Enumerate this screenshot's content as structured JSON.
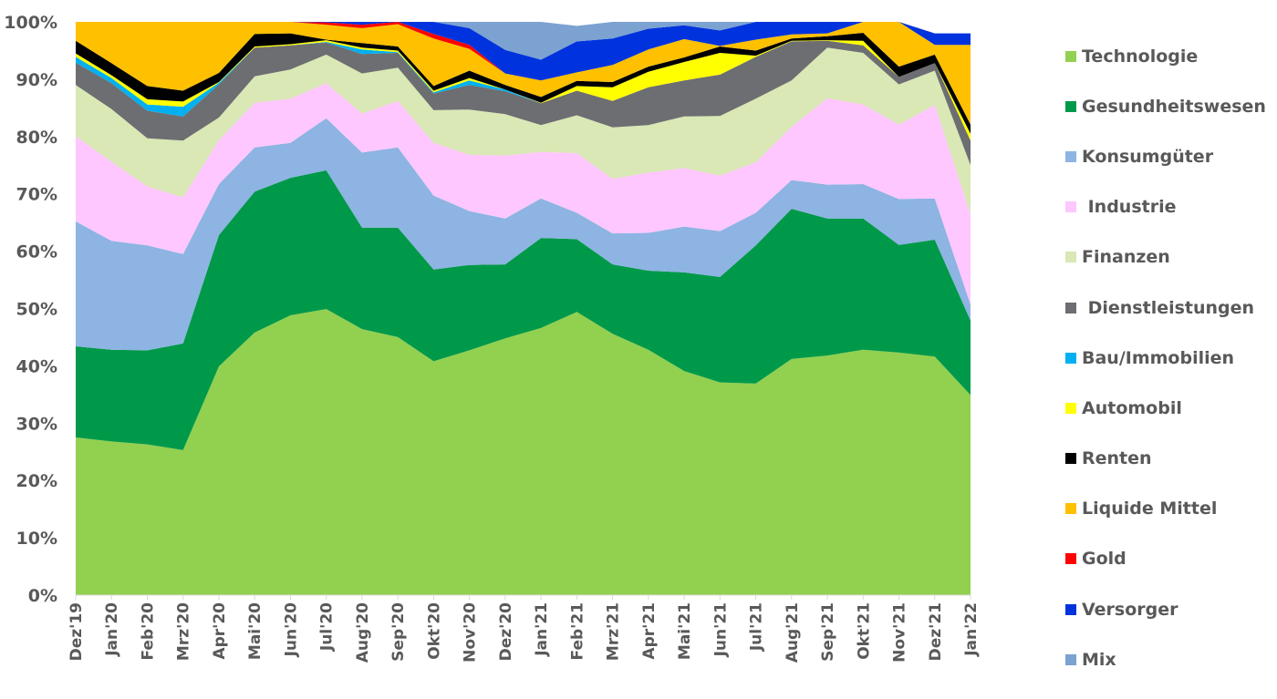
{
  "chart_data": {
    "type": "area",
    "stacked": true,
    "title": "",
    "xlabel": "",
    "ylabel": "",
    "ylim": [
      0,
      100
    ],
    "y_ticks": [
      "0%",
      "10%",
      "20%",
      "30%",
      "40%",
      "50%",
      "60%",
      "70%",
      "80%",
      "90%",
      "100%"
    ],
    "categories": [
      "Dez'19",
      "Jan'20",
      "Feb'20",
      "Mrz'20",
      "Apr'20",
      "Mai'20",
      "Jun'20",
      "Jul'20",
      "Aug'20",
      "Sep'20",
      "Okt'20",
      "Nov'20",
      "Dez'20",
      "Jan'21",
      "Feb'21",
      "Mrz'21",
      "Apr'21",
      "Mai'21",
      "Jun'21",
      "Jul'21",
      "Aug'21",
      "Sep'21",
      "Okt'21",
      "Nov'21",
      "Dez'21",
      "Jan'22"
    ],
    "series": [
      {
        "name": "Technologie",
        "color": "#92d050",
        "values": [
          27.5,
          26.8,
          26.3,
          25.3,
          39.9,
          45.8,
          48.8,
          49.9,
          46.4,
          45.0,
          40.8,
          42.7,
          44.8,
          46.6,
          49.4,
          45.6,
          42.8,
          39.1,
          37.1,
          36.9,
          41.2,
          41.8,
          42.8,
          42.3,
          41.6,
          34.9
        ]
      },
      {
        "name": "Gesundheitswesen",
        "color": "#00994a",
        "values": [
          15.9,
          16.0,
          16.4,
          18.6,
          22.9,
          24.6,
          24.0,
          24.2,
          17.7,
          19.1,
          16.0,
          14.9,
          12.9,
          15.7,
          12.7,
          12.1,
          13.8,
          17.2,
          18.4,
          24.1,
          26.2,
          23.9,
          22.9,
          18.8,
          20.4,
          13.0
        ]
      },
      {
        "name": "Konsumgüter",
        "color": "#8db4e2",
        "values": [
          21.8,
          19.0,
          18.3,
          15.6,
          8.9,
          7.7,
          6.1,
          9.1,
          13.1,
          14.0,
          12.9,
          9.4,
          8.0,
          6.9,
          4.6,
          5.4,
          6.6,
          8.0,
          8.0,
          5.7,
          5.0,
          5.9,
          6.0,
          8.0,
          7.2,
          2.8
        ]
      },
      {
        "name": "Industrie",
        "color": "#ffc7ff",
        "values": [
          14.9,
          13.8,
          10.3,
          9.9,
          7.7,
          7.8,
          7.7,
          6.1,
          6.8,
          8.1,
          9.2,
          9.8,
          11.0,
          8.1,
          10.4,
          9.5,
          10.5,
          10.2,
          9.7,
          8.8,
          9.3,
          15.1,
          13.9,
          13.0,
          16.3,
          15.7
        ]
      },
      {
        "name": "Finanzen",
        "color": "#d9e8b5",
        "values": [
          8.9,
          9.2,
          8.4,
          9.9,
          3.9,
          4.6,
          5.1,
          5.0,
          7.0,
          5.8,
          5.7,
          7.9,
          7.2,
          4.7,
          6.6,
          9.0,
          8.3,
          9.0,
          10.4,
          11.1,
          8.1,
          8.8,
          9.0,
          7.0,
          6.0,
          8.6
        ]
      },
      {
        "name": "Dienstleistungen",
        "color": "#6d6e71",
        "values": [
          3.9,
          4.5,
          4.8,
          4.2,
          5.8,
          5.0,
          4.2,
          2.1,
          3.4,
          2.6,
          2.9,
          4.3,
          4.0,
          3.8,
          4.3,
          4.6,
          6.6,
          6.3,
          7.2,
          7.3,
          6.8,
          1.2,
          1.3,
          1.3,
          1.3,
          4.3
        ]
      },
      {
        "name": "Bau/Immobilien",
        "color": "#00b0f0",
        "values": [
          1.0,
          0.9,
          1.1,
          1.7,
          0.3,
          0.0,
          0.0,
          0.1,
          0.8,
          0.1,
          0.2,
          0.8,
          0.3,
          0.0,
          0.0,
          0.0,
          0.0,
          0.0,
          0.0,
          0.0,
          0.0,
          0.0,
          0.0,
          0.0,
          0.0,
          0.0
        ]
      },
      {
        "name": "Automobil",
        "color": "#ffff00",
        "values": [
          0.6,
          0.5,
          0.9,
          0.9,
          0.1,
          0.2,
          0.2,
          0.3,
          0.3,
          0.3,
          0.3,
          0.4,
          0.0,
          0.1,
          0.8,
          2.4,
          2.7,
          3.2,
          3.8,
          0.2,
          0.1,
          0.1,
          0.8,
          0.0,
          0.0,
          1.2
        ]
      },
      {
        "name": "Renten",
        "color": "#000000",
        "values": [
          2.2,
          2.1,
          2.3,
          1.9,
          1.6,
          2.2,
          1.9,
          0.1,
          0.8,
          0.7,
          0.8,
          1.3,
          0.8,
          1.0,
          0.9,
          0.9,
          0.9,
          0.8,
          1.1,
          0.9,
          0.4,
          0.7,
          1.4,
          1.8,
          1.5,
          1.6
        ]
      },
      {
        "name": "Liquide Mittel",
        "color": "#ffc000",
        "values": [
          3.3,
          7.2,
          11.2,
          12.0,
          8.9,
          2.1,
          2.0,
          2.6,
          2.6,
          3.9,
          8.3,
          3.8,
          2.0,
          2.9,
          1.5,
          3.0,
          3.0,
          3.2,
          0.1,
          1.9,
          0.7,
          0.5,
          1.9,
          7.8,
          1.7,
          13.9
        ]
      },
      {
        "name": "Gold",
        "color": "#ff0000",
        "values": [
          0.0,
          0.0,
          0.0,
          0.0,
          0.0,
          0.0,
          0.0,
          0.4,
          0.6,
          0.5,
          0.8,
          0.7,
          0.0,
          0.0,
          0.0,
          0.0,
          0.0,
          0.0,
          0.0,
          0.0,
          0.0,
          0.0,
          0.0,
          0.0,
          0.0,
          0.0
        ]
      },
      {
        "name": "Versorger",
        "color": "#0033dd",
        "values": [
          0.0,
          0.0,
          0.0,
          0.0,
          0.0,
          0.0,
          0.0,
          0.1,
          0.5,
          0.0,
          2.1,
          2.9,
          4.1,
          3.6,
          5.4,
          4.6,
          3.6,
          2.4,
          2.7,
          3.1,
          2.2,
          2.0,
          0.0,
          0.0,
          2.0,
          2.0
        ]
      },
      {
        "name": "Mix",
        "color": "#7ba2d0",
        "values": [
          0.0,
          0.0,
          0.0,
          0.0,
          0.0,
          0.0,
          0.0,
          0.0,
          0.0,
          0.0,
          0.0,
          1.2,
          4.9,
          6.6,
          2.7,
          2.9,
          1.2,
          0.6,
          1.5,
          0.0,
          0.0,
          0.0,
          0.0,
          0.0,
          0.0,
          0.0
        ]
      }
    ],
    "legend_labels": [
      "Technologie",
      "Gesundheitswesen",
      "Konsumgüter",
      " Industrie",
      "Finanzen",
      " Dienstleistungen",
      "Bau/Immobilien",
      "Automobil",
      "Renten",
      "Liquide Mittel",
      "Gold",
      "Versorger",
      "Mix"
    ],
    "legend_position": "right",
    "grid": false
  }
}
